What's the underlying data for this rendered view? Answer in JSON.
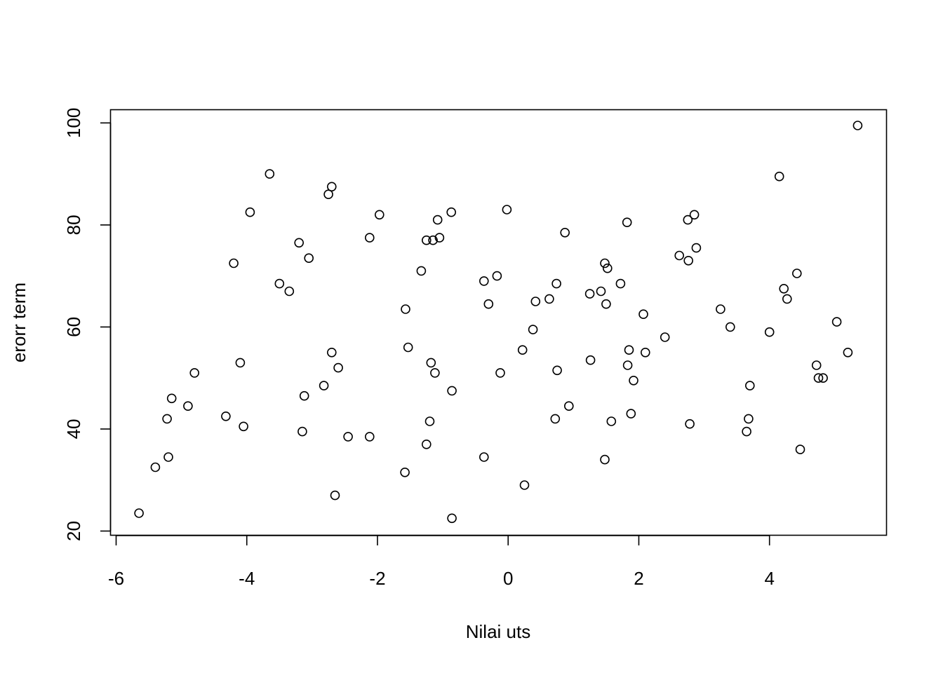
{
  "chart_data": {
    "type": "scatter",
    "title": "",
    "xlabel": "Nilai uts",
    "ylabel": "erorr term",
    "xlim": [
      -6,
      5.5
    ],
    "ylim": [
      20,
      100
    ],
    "xticks": [
      -6,
      -4,
      -2,
      0,
      2,
      4
    ],
    "yticks": [
      20,
      40,
      60,
      80,
      100
    ],
    "xtick_labels": [
      "-6",
      "-4",
      "-2",
      "0",
      "2",
      "4"
    ],
    "ytick_labels": [
      "20",
      "40",
      "60",
      "80",
      "100"
    ],
    "grid": false,
    "marker": "open-circle",
    "points": [
      [
        -5.65,
        23.5
      ],
      [
        -5.4,
        32.5
      ],
      [
        -5.22,
        42.0
      ],
      [
        -5.2,
        34.5
      ],
      [
        -5.15,
        46.0
      ],
      [
        -4.9,
        44.5
      ],
      [
        -4.8,
        51.0
      ],
      [
        -4.32,
        42.5
      ],
      [
        -4.2,
        72.5
      ],
      [
        -4.1,
        53.0
      ],
      [
        -4.05,
        40.5
      ],
      [
        -3.95,
        82.5
      ],
      [
        -3.65,
        90.0
      ],
      [
        -3.5,
        68.5
      ],
      [
        -3.35,
        67.0
      ],
      [
        -3.2,
        76.5
      ],
      [
        -3.15,
        39.5
      ],
      [
        -3.12,
        46.5
      ],
      [
        -3.05,
        73.5
      ],
      [
        -2.82,
        48.5
      ],
      [
        -2.75,
        86.0
      ],
      [
        -2.7,
        87.5
      ],
      [
        -2.7,
        55.0
      ],
      [
        -2.65,
        27.0
      ],
      [
        -2.6,
        52.0
      ],
      [
        -2.45,
        38.5
      ],
      [
        -2.12,
        38.5
      ],
      [
        -2.12,
        77.5
      ],
      [
        -1.97,
        82.0
      ],
      [
        -1.58,
        31.5
      ],
      [
        -1.57,
        63.5
      ],
      [
        -1.53,
        56.0
      ],
      [
        -1.33,
        71.0
      ],
      [
        -1.25,
        77.0
      ],
      [
        -1.25,
        37.0
      ],
      [
        -1.2,
        41.5
      ],
      [
        -1.18,
        53.0
      ],
      [
        -1.15,
        77.0
      ],
      [
        -1.12,
        51.0
      ],
      [
        -1.08,
        81.0
      ],
      [
        -1.05,
        77.5
      ],
      [
        -0.87,
        82.5
      ],
      [
        -0.86,
        47.5
      ],
      [
        -0.86,
        22.5
      ],
      [
        -0.37,
        69.0
      ],
      [
        -0.37,
        34.5
      ],
      [
        -0.3,
        64.5
      ],
      [
        -0.17,
        70.0
      ],
      [
        -0.12,
        51.0
      ],
      [
        -0.02,
        83.0
      ],
      [
        0.22,
        55.5
      ],
      [
        0.25,
        29.0
      ],
      [
        0.38,
        59.5
      ],
      [
        0.42,
        65.0
      ],
      [
        0.63,
        65.5
      ],
      [
        0.72,
        42.0
      ],
      [
        0.74,
        68.5
      ],
      [
        0.75,
        51.5
      ],
      [
        0.87,
        78.5
      ],
      [
        0.93,
        44.5
      ],
      [
        1.25,
        66.5
      ],
      [
        1.26,
        53.5
      ],
      [
        1.42,
        67.0
      ],
      [
        1.48,
        72.5
      ],
      [
        1.48,
        34.0
      ],
      [
        1.5,
        64.5
      ],
      [
        1.52,
        71.5
      ],
      [
        1.58,
        41.5
      ],
      [
        1.72,
        68.5
      ],
      [
        1.82,
        80.5
      ],
      [
        1.83,
        52.5
      ],
      [
        1.85,
        55.5
      ],
      [
        1.88,
        43.0
      ],
      [
        1.92,
        49.5
      ],
      [
        2.07,
        62.5
      ],
      [
        2.1,
        55.0
      ],
      [
        2.4,
        58.0
      ],
      [
        2.62,
        74.0
      ],
      [
        2.75,
        81.0
      ],
      [
        2.76,
        73.0
      ],
      [
        2.78,
        41.0
      ],
      [
        2.85,
        82.0
      ],
      [
        2.88,
        75.5
      ],
      [
        3.25,
        63.5
      ],
      [
        3.4,
        60.0
      ],
      [
        3.65,
        39.5
      ],
      [
        3.68,
        42.0
      ],
      [
        3.7,
        48.5
      ],
      [
        4.0,
        59.0
      ],
      [
        4.15,
        89.5
      ],
      [
        4.22,
        67.5
      ],
      [
        4.27,
        65.5
      ],
      [
        4.42,
        70.5
      ],
      [
        4.47,
        36.0
      ],
      [
        4.72,
        52.5
      ],
      [
        4.75,
        50.0
      ],
      [
        4.82,
        50.0
      ],
      [
        5.03,
        61.0
      ],
      [
        5.2,
        55.0
      ],
      [
        5.35,
        99.5
      ]
    ]
  }
}
